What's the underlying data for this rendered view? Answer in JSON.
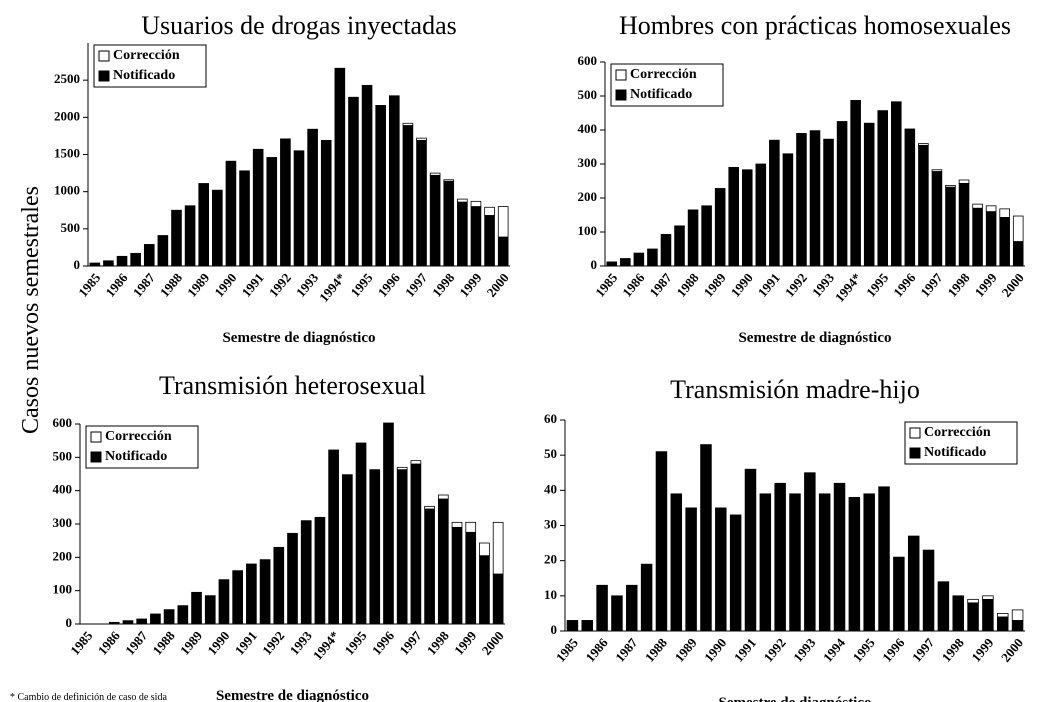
{
  "ylabel": "Casos nuevos semestrales",
  "footnote": "* Cambio de definición de caso de sida",
  "chart_data": [
    {
      "type": "bar",
      "stacked": true,
      "title": "Usuarios de drogas inyectadas",
      "x_label": "Semestre de diagnóstico",
      "legend": "upper left",
      "categories": [
        "1985",
        null,
        "1986",
        null,
        "1987",
        null,
        "1988",
        null,
        "1989",
        null,
        "1990",
        null,
        "1991",
        null,
        "1992",
        null,
        "1993",
        null,
        "1994*",
        null,
        "1995",
        null,
        "1996",
        null,
        "1997",
        null,
        "1998",
        null,
        "1999",
        null,
        "2000"
      ],
      "series": [
        {
          "name": "Corrección",
          "color": "#ffffff",
          "values": [
            0,
            0,
            0,
            0,
            0,
            0,
            0,
            0,
            0,
            0,
            0,
            0,
            0,
            0,
            0,
            0,
            0,
            0,
            0,
            0,
            0,
            0,
            0,
            30,
            30,
            30,
            20,
            40,
            70,
            110,
            410
          ]
        },
        {
          "name": "Notificado",
          "color": "#000000",
          "values": [
            40,
            70,
            130,
            170,
            290,
            410,
            750,
            810,
            1110,
            1020,
            1410,
            1280,
            1570,
            1460,
            1710,
            1550,
            1840,
            1690,
            2660,
            2270,
            2430,
            2160,
            2290,
            1890,
            1690,
            1220,
            1140,
            860,
            800,
            680,
            390
          ]
        }
      ],
      "ylim": [
        0,
        3000
      ],
      "yticks": [
        0,
        500,
        1000,
        1500,
        2000,
        2500
      ]
    },
    {
      "type": "bar",
      "stacked": true,
      "title": "Hombres con prácticas homosexuales",
      "x_label": "Semestre de diagnóstico",
      "legend": "upper left",
      "categories": [
        "1985",
        null,
        "1986",
        null,
        "1987",
        null,
        "1988",
        null,
        "1989",
        null,
        "1990",
        null,
        "1991",
        null,
        "1992",
        null,
        "1993",
        null,
        "1994*",
        null,
        "1995",
        null,
        "1996",
        null,
        "1997",
        null,
        "1998",
        null,
        "1999",
        null,
        "2000"
      ],
      "series": [
        {
          "name": "Corrección",
          "color": "#ffffff",
          "values": [
            0,
            0,
            0,
            0,
            0,
            0,
            0,
            0,
            0,
            0,
            0,
            0,
            0,
            0,
            0,
            0,
            0,
            0,
            0,
            0,
            0,
            0,
            0,
            5,
            5,
            5,
            10,
            12,
            17,
            25,
            75
          ]
        },
        {
          "name": "Notificado",
          "color": "#000000",
          "values": [
            12,
            22,
            38,
            50,
            93,
            118,
            165,
            177,
            228,
            290,
            283,
            300,
            370,
            330,
            390,
            398,
            373,
            425,
            487,
            420,
            457,
            483,
            403,
            355,
            278,
            232,
            243,
            170,
            160,
            143,
            72
          ]
        }
      ],
      "ylim": [
        0,
        600
      ],
      "yticks": [
        0,
        100,
        200,
        300,
        400,
        500,
        600
      ]
    },
    {
      "type": "bar",
      "stacked": true,
      "title": "Transmisión heterosexual",
      "x_label": "Semestre de diagnóstico",
      "legend": "upper left",
      "categories": [
        "1985",
        null,
        "1986",
        null,
        "1987",
        null,
        "1988",
        null,
        "1989",
        null,
        "1990",
        null,
        "1991",
        null,
        "1992",
        null,
        "1993",
        null,
        "1994*",
        null,
        "1995",
        null,
        "1996",
        null,
        "1997",
        null,
        "1998",
        null,
        "1999",
        null,
        "2000"
      ],
      "series": [
        {
          "name": "Corrección",
          "color": "#ffffff",
          "values": [
            0,
            0,
            0,
            0,
            0,
            0,
            0,
            0,
            0,
            0,
            0,
            0,
            0,
            0,
            0,
            0,
            0,
            0,
            0,
            0,
            0,
            0,
            0,
            7,
            10,
            8,
            12,
            15,
            30,
            38,
            155
          ]
        },
        {
          "name": "Notificado",
          "color": "#000000",
          "values": [
            0,
            0,
            5,
            10,
            15,
            30,
            43,
            55,
            95,
            85,
            133,
            160,
            180,
            193,
            230,
            272,
            310,
            320,
            522,
            448,
            543,
            463,
            603,
            463,
            480,
            345,
            375,
            290,
            275,
            205,
            150
          ]
        }
      ],
      "ylim": [
        0,
        600
      ],
      "yticks": [
        0,
        100,
        200,
        300,
        400,
        500,
        600
      ]
    },
    {
      "type": "bar",
      "stacked": true,
      "title": "Transmisión madre-hijo",
      "x_label": "Semestre de diagnóstico",
      "legend": "upper right",
      "categories": [
        "1985",
        null,
        "1986",
        null,
        "1987",
        null,
        "1988",
        null,
        "1989",
        null,
        "1990",
        null,
        "1991",
        null,
        "1992",
        null,
        "1993",
        null,
        "1994",
        null,
        "1995",
        null,
        "1996",
        null,
        "1997",
        null,
        "1998",
        null,
        "1999",
        null,
        "2000"
      ],
      "series": [
        {
          "name": "Corrección",
          "color": "#ffffff",
          "values": [
            0,
            0,
            0,
            0,
            0,
            0,
            0,
            0,
            0,
            0,
            0,
            0,
            0,
            0,
            0,
            0,
            0,
            0,
            0,
            0,
            0,
            0,
            0,
            0,
            0,
            0,
            0,
            1,
            1,
            1,
            3
          ]
        },
        {
          "name": "Notificado",
          "color": "#000000",
          "values": [
            3,
            3,
            13,
            10,
            13,
            19,
            51,
            39,
            35,
            53,
            35,
            33,
            46,
            39,
            42,
            39,
            45,
            39,
            42,
            38,
            39,
            41,
            21,
            27,
            23,
            14,
            10,
            8,
            9,
            4,
            3
          ]
        }
      ],
      "ylim": [
        0,
        60
      ],
      "yticks": [
        0,
        10,
        20,
        30,
        40,
        50,
        60
      ]
    }
  ]
}
